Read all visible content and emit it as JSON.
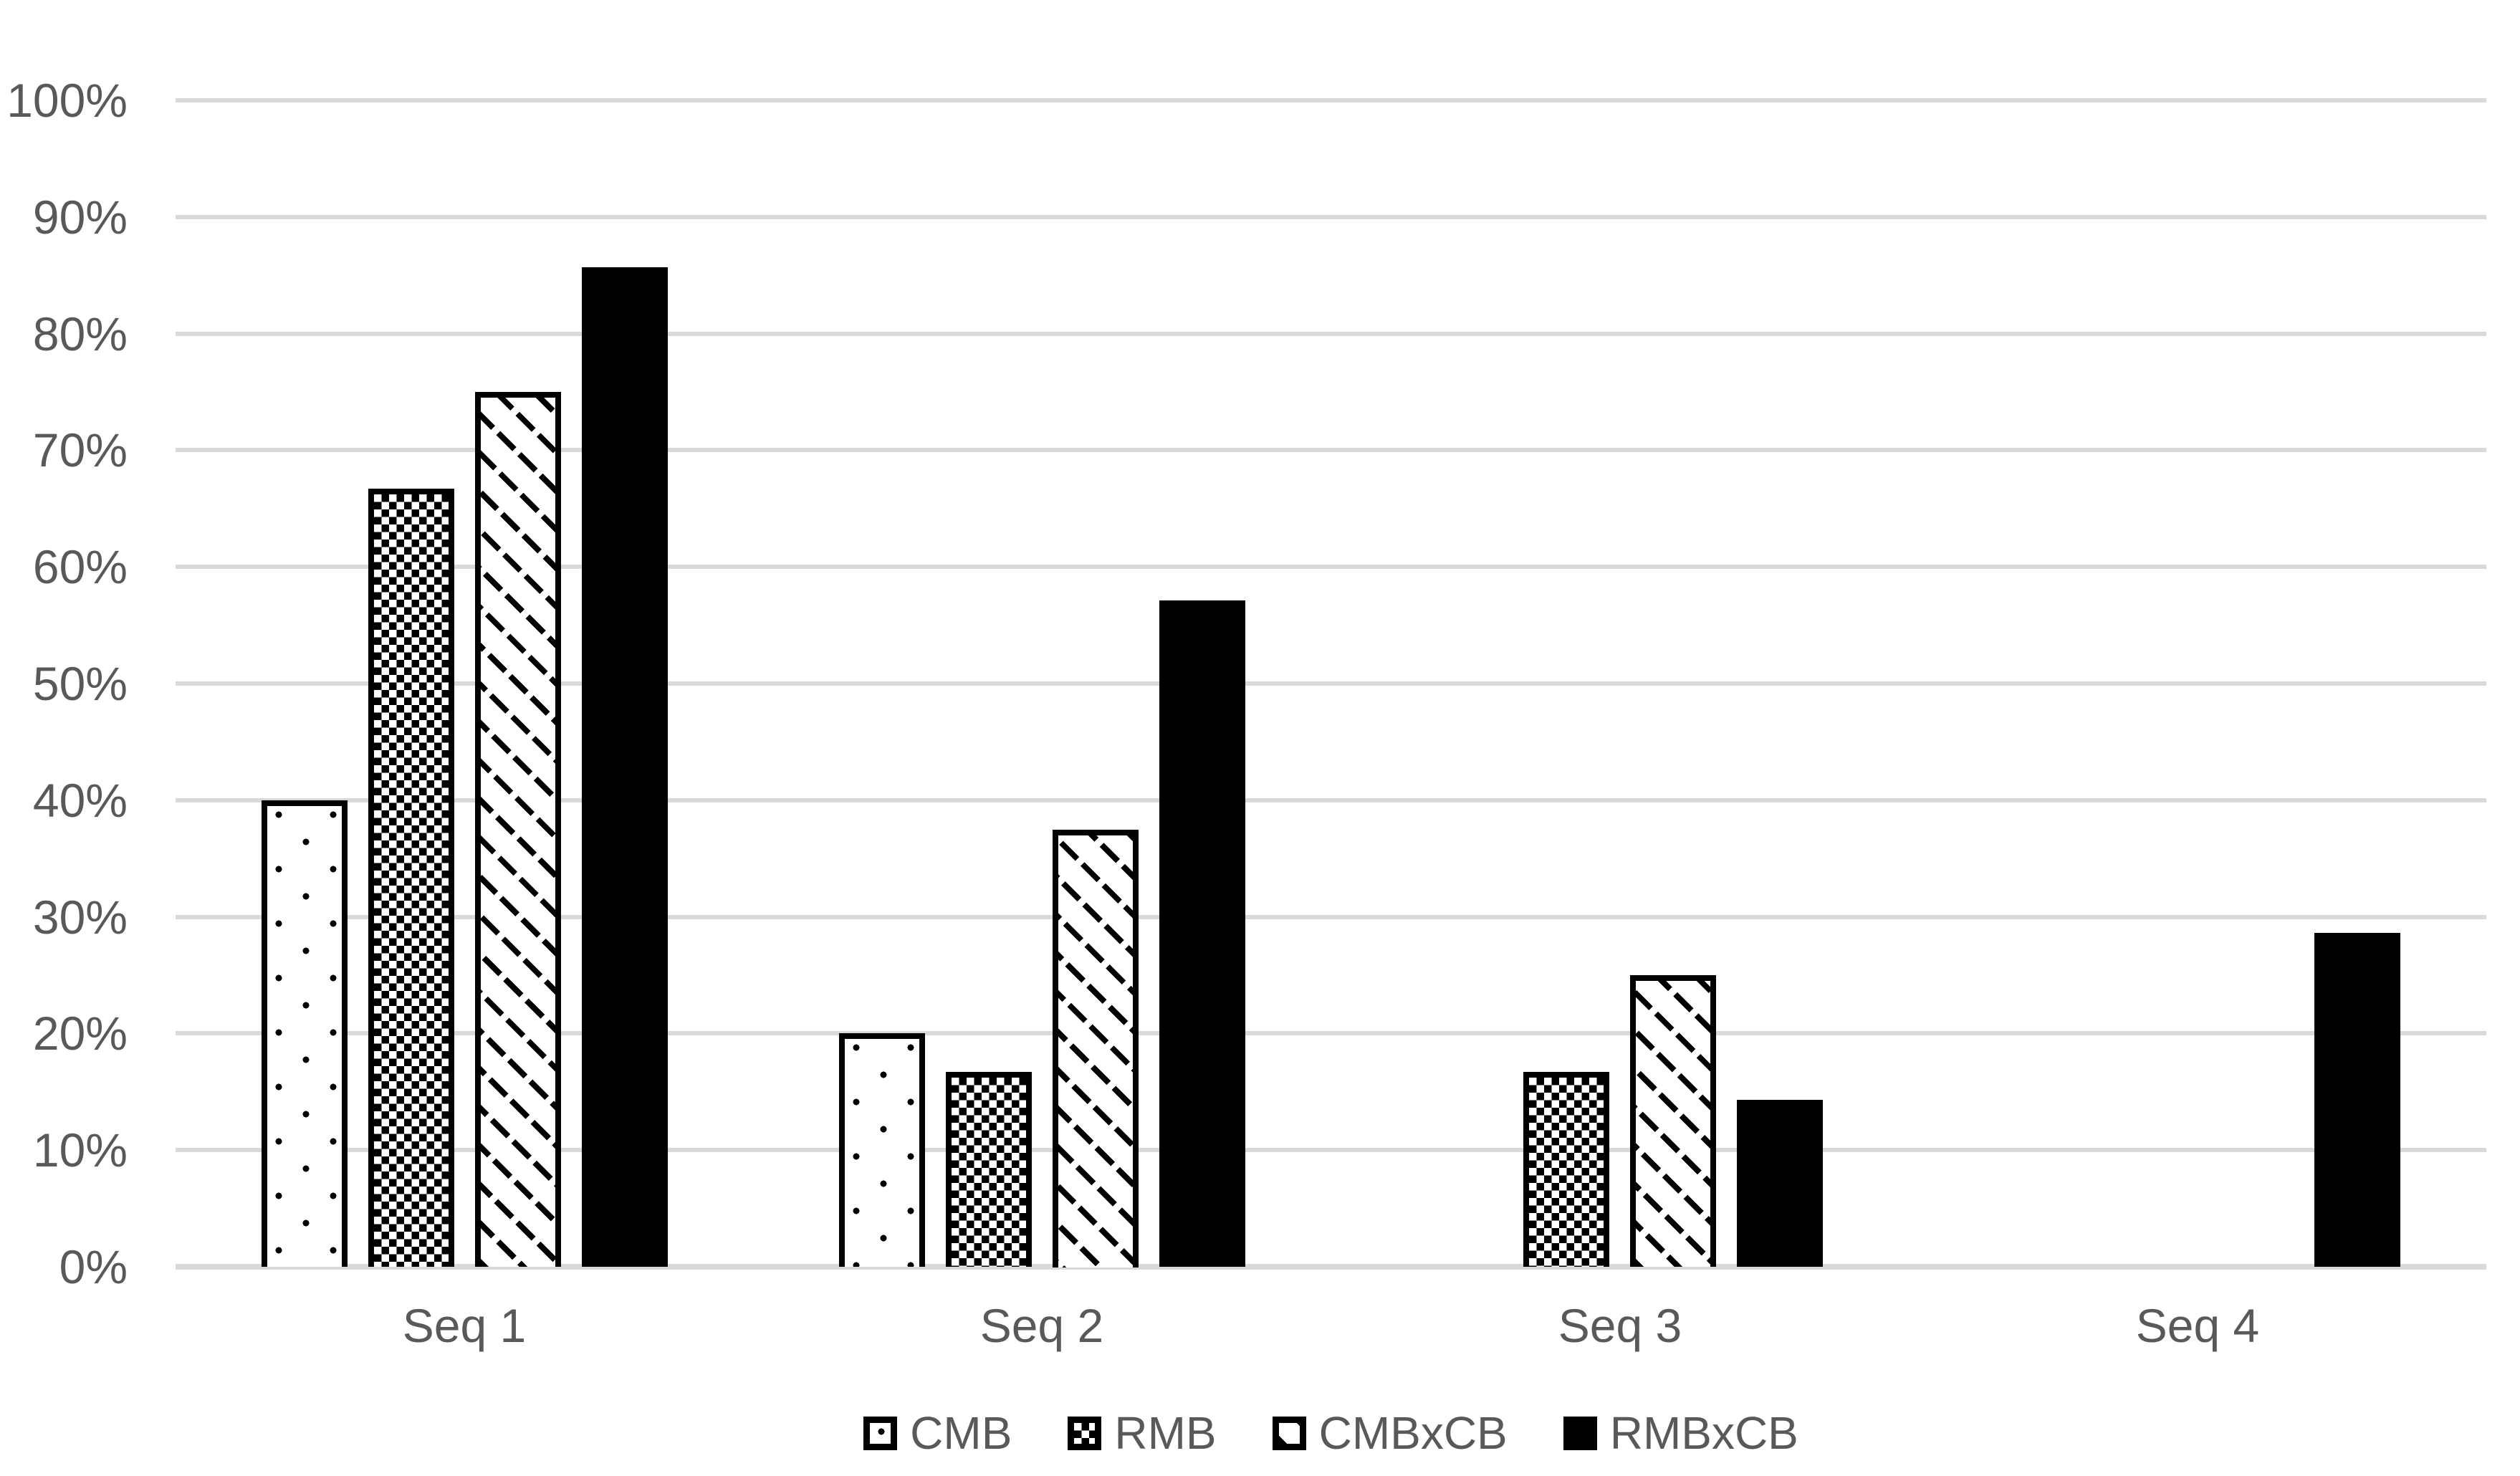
{
  "chart_data": {
    "type": "bar",
    "title": "",
    "categories": [
      "Seq 1",
      "Seq 2",
      "Seq 3",
      "Seq 4"
    ],
    "series": [
      {
        "name": "CMB",
        "pattern": "dots-sparse",
        "values": [
          40,
          20,
          0,
          0
        ]
      },
      {
        "name": "RMB",
        "pattern": "dots-dense",
        "values": [
          66.7,
          16.7,
          16.7,
          0
        ]
      },
      {
        "name": "CMBxCB",
        "pattern": "hatch",
        "values": [
          75,
          37.5,
          25,
          0
        ]
      },
      {
        "name": "RMBxCB",
        "pattern": "solid",
        "values": [
          85.7,
          57.1,
          14.3,
          28.6
        ]
      }
    ],
    "y_axis": {
      "min": 0,
      "max": 100,
      "step": 10,
      "unit": "%",
      "tick_labels": [
        "0%",
        "10%",
        "20%",
        "30%",
        "40%",
        "50%",
        "60%",
        "70%",
        "80%",
        "90%",
        "100%"
      ],
      "grid": true
    },
    "xlabel": "",
    "ylabel": "",
    "legend_position": "bottom",
    "colors": {
      "background": "#FFFFFF",
      "gridline": "#D9D9D9",
      "axis_text": "#595959",
      "bar_outline": "#000000",
      "solid_bar_fill": "#000000"
    }
  }
}
